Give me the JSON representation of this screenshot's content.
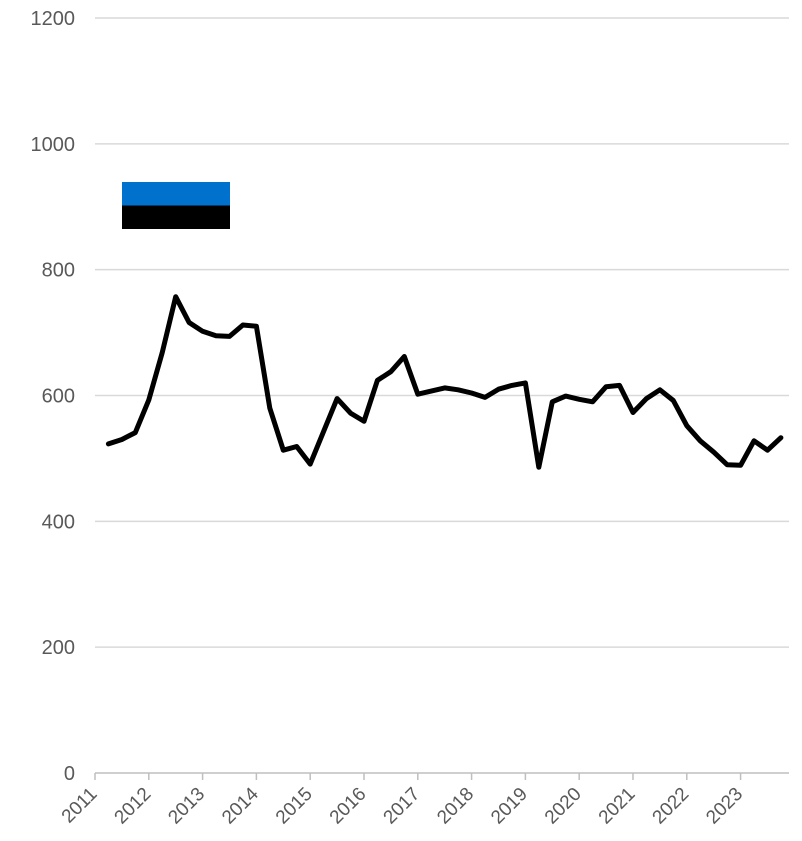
{
  "chart_data": {
    "type": "line",
    "title": "",
    "xlabel": "",
    "ylabel": "",
    "ylim": [
      0,
      1200
    ],
    "yticks": [
      0,
      200,
      400,
      600,
      800,
      1000,
      1200
    ],
    "xlim": [
      2011,
      2023.9
    ],
    "xticks": [
      "2011",
      "2012",
      "2013",
      "2014",
      "2015",
      "2016",
      "2017",
      "2018",
      "2019",
      "2020",
      "2021",
      "2022",
      "2023"
    ],
    "grid": true,
    "legend": "none",
    "flag": {
      "country": "Estonia",
      "colors": [
        "#0072CE",
        "#000000",
        "#FFFFFF"
      ]
    },
    "series": [
      {
        "color": "#000000",
        "x": [
          2011.25,
          2011.5,
          2011.75,
          2012.0,
          2012.25,
          2012.5,
          2012.75,
          2013.0,
          2013.25,
          2013.5,
          2013.75,
          2014.0,
          2014.25,
          2014.5,
          2014.75,
          2015.0,
          2015.25,
          2015.5,
          2015.75,
          2016.0,
          2016.25,
          2016.5,
          2016.75,
          2017.0,
          2017.25,
          2017.5,
          2017.75,
          2018.0,
          2018.25,
          2018.5,
          2018.75,
          2019.0,
          2019.25,
          2019.5,
          2019.75,
          2020.0,
          2020.25,
          2020.5,
          2020.75,
          2021.0,
          2021.25,
          2021.5,
          2021.75,
          2022.0,
          2022.25,
          2022.5,
          2022.75,
          2023.0,
          2023.25,
          2023.5,
          2023.75
        ],
        "values": [
          523,
          530,
          541,
          593,
          668,
          757,
          716,
          702,
          695,
          694,
          712,
          710,
          580,
          513,
          519,
          491,
          543,
          595,
          572,
          559,
          624,
          638,
          662,
          602,
          607,
          612,
          609,
          604,
          597,
          610,
          616,
          620,
          486,
          590,
          599,
          594,
          590,
          614,
          616,
          573,
          595,
          609,
          592,
          552,
          528,
          510,
          490,
          489,
          528,
          513,
          533
        ]
      }
    ]
  }
}
